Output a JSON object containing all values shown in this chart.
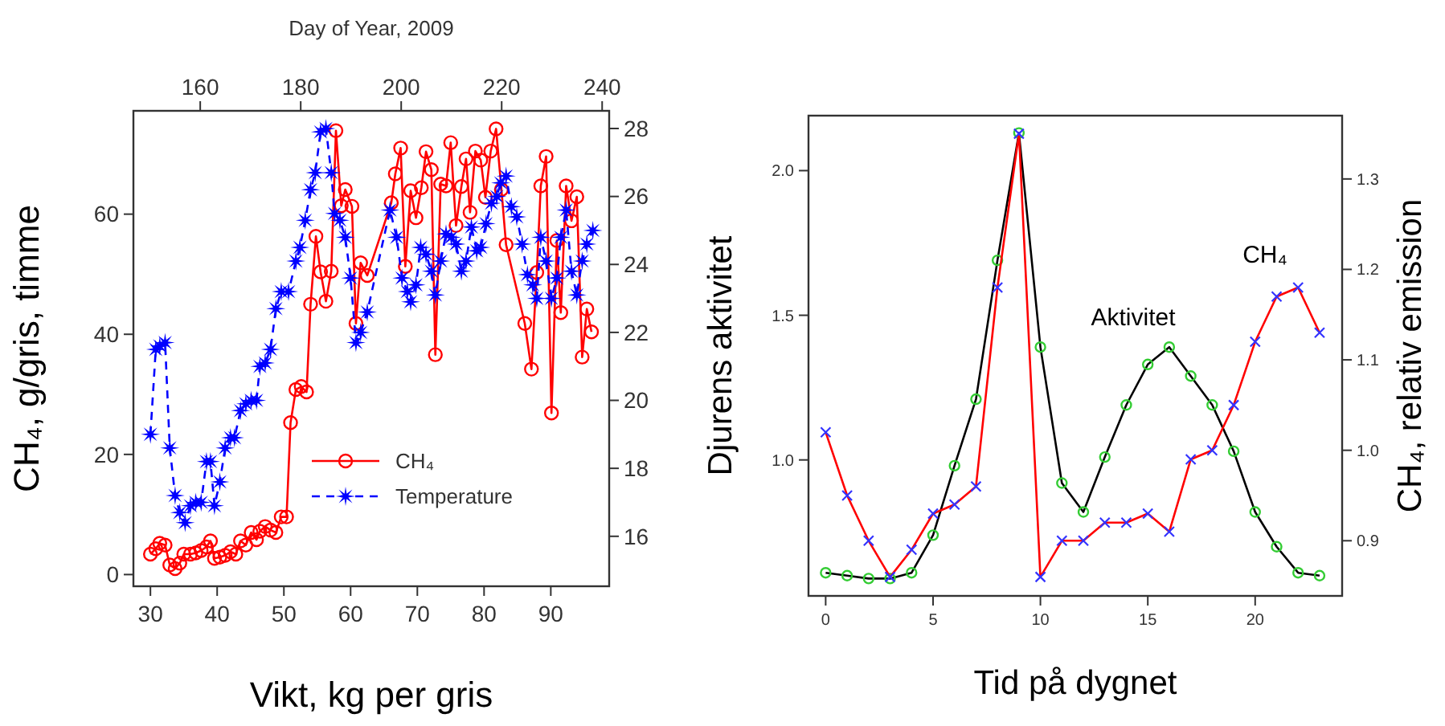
{
  "chart_data": [
    {
      "type": "line",
      "xlabel": "Vikt, kg per gris",
      "ylabel": "CH₄, g/gris, timme",
      "x2label": "Day of Year, 2009",
      "legend": "bottom right",
      "xlim": [
        27.45,
        98.75
      ],
      "xticks": [
        30,
        40,
        50,
        60,
        70,
        80,
        90
      ],
      "ylim": [
        -1.95,
        77.2
      ],
      "yticks": [
        0,
        20,
        40,
        60
      ],
      "x2lim": [
        146.7,
        241.4
      ],
      "x2ticks": [
        160,
        180,
        200,
        220,
        240
      ],
      "y2lim": [
        14.53,
        28.52
      ],
      "y2ticks": [
        16,
        18,
        20,
        22,
        24,
        26,
        28
      ],
      "series": [
        {
          "name": "CH₄",
          "color": "#ff0000",
          "marker": "circle",
          "line_style": "solid",
          "x": [
            30,
            30.8,
            31.4,
            32.2,
            32.9,
            33.7,
            34.4,
            35.0,
            36.0,
            36.8,
            37.6,
            38.4,
            39.0,
            39.6,
            40.4,
            41.2,
            42.0,
            42.8,
            43.5,
            44.3,
            45.1,
            45.9,
            46.4,
            47.2,
            48.0,
            48.8,
            49.6,
            50.4,
            51.0,
            51.8,
            52.6,
            53.4,
            54.0,
            54.8,
            55.5,
            56.3,
            57.1,
            57.8,
            58.6,
            59.2,
            60.2,
            60.8,
            61.5,
            62.5,
            66.1,
            66.7,
            67.5,
            68.2,
            69.0,
            69.8,
            70.6,
            71.3,
            72.1,
            72.7,
            73.5,
            74.3,
            75.0,
            75.8,
            76.6,
            77.3,
            77.9,
            78.7,
            79.5,
            80.2,
            81.0,
            81.8,
            82.6,
            83.3,
            86.1,
            87.1,
            87.9,
            88.5,
            89.3,
            90.1,
            90.9,
            91.5,
            92.3,
            93.1,
            93.9,
            94.7,
            95.4,
            96.1
          ],
          "values": [
            3.4,
            4.3,
            5.2,
            4.9,
            1.6,
            1.0,
            1.9,
            3.4,
            3.4,
            3.6,
            4.0,
            4.6,
            5.6,
            2.7,
            2.9,
            3.2,
            3.8,
            3.4,
            5.6,
            4.9,
            7.0,
            5.8,
            7.2,
            8.0,
            7.4,
            7.0,
            9.6,
            9.6,
            25.3,
            30.8,
            31.3,
            30.4,
            45.0,
            56.3,
            50.4,
            45.5,
            50.5,
            73.9,
            61.4,
            64.1,
            61.3,
            41.8,
            51.9,
            49.8,
            61.9,
            66.7,
            71.0,
            51.3,
            63.9,
            59.4,
            64.4,
            70.4,
            67.4,
            36.6,
            65.0,
            64.7,
            71.9,
            58.1,
            64.6,
            69.2,
            60.3,
            70.5,
            69.0,
            62.8,
            70.5,
            74.2,
            64.1,
            54.9,
            41.8,
            34.2,
            50.3,
            64.7,
            69.6,
            26.9,
            55.6,
            43.6,
            64.7,
            58.9,
            62.9,
            36.2,
            44.2,
            40.4
          ]
        },
        {
          "name": "Temperature",
          "color": "#0000ff",
          "marker": "star",
          "line_style": "dashed",
          "axis": "y2",
          "x": [
            30,
            30.8,
            31.4,
            32.2,
            32.9,
            33.7,
            34.4,
            35.2,
            36.0,
            36.8,
            37.6,
            38.4,
            39.0,
            39.6,
            40.4,
            41.2,
            42.0,
            42.6,
            43.5,
            44.3,
            45.1,
            45.9,
            46.4,
            47.2,
            48.0,
            48.8,
            49.6,
            50.7,
            51.8,
            52.4,
            53.2,
            54.0,
            54.7,
            55.5,
            56.3,
            57.1,
            57.6,
            58.4,
            59.2,
            60.0,
            60.8,
            61.5,
            62.5,
            65.9,
            66.9,
            67.7,
            68.5,
            69.0,
            69.8,
            70.5,
            71.3,
            72.1,
            72.7,
            73.5,
            74.3,
            75.1,
            75.8,
            76.6,
            77.3,
            78.1,
            78.9,
            79.5,
            80.3,
            81.1,
            81.9,
            82.5,
            83.3,
            84.1,
            84.9,
            85.7,
            86.5,
            87.3,
            87.9,
            88.5,
            89.3,
            90.1,
            90.9,
            91.5,
            92.3,
            93.1,
            93.9,
            94.7,
            95.4,
            96.3
          ],
          "values": [
            19.0,
            21.5,
            21.6,
            21.7,
            18.6,
            17.2,
            16.7,
            16.4,
            16.9,
            17.0,
            17.0,
            18.2,
            18.2,
            16.9,
            17.6,
            18.6,
            18.9,
            18.9,
            19.7,
            19.9,
            20.0,
            20.0,
            21.0,
            21.1,
            21.5,
            22.7,
            23.2,
            23.2,
            24.1,
            24.5,
            25.3,
            26.2,
            26.7,
            27.9,
            28.0,
            26.7,
            25.5,
            25.3,
            24.8,
            23.6,
            21.7,
            22.0,
            22.6,
            25.6,
            24.8,
            23.6,
            23.2,
            22.9,
            23.4,
            24.5,
            24.3,
            23.8,
            23.1,
            24.1,
            24.9,
            24.8,
            24.6,
            23.8,
            24.1,
            25.1,
            24.4,
            24.5,
            25.2,
            25.8,
            26.0,
            26.4,
            26.6,
            25.7,
            25.4,
            24.6,
            23.7,
            23.4,
            23.0,
            24.8,
            24.1,
            23.0,
            23.6,
            24.8,
            25.6,
            23.8,
            23.1,
            24.1,
            24.6,
            25.0
          ]
        }
      ]
    },
    {
      "type": "line",
      "xlabel": "Tid på dygnet",
      "ylabel": "Djurens aktivitet",
      "y2label": "CH₄, relativ emission",
      "x": [
        0,
        1,
        2,
        3,
        4,
        5,
        6,
        7,
        8,
        9,
        10,
        11,
        12,
        13,
        14,
        15,
        16,
        17,
        18,
        19,
        20,
        21,
        22,
        23
      ],
      "xlim": [
        -0.8,
        24.05
      ],
      "xticks": [
        0,
        5,
        10,
        15,
        20
      ],
      "ylim": [
        0.53,
        2.19
      ],
      "yticks": [
        {
          "value": 1,
          "label": "1.0"
        },
        {
          "value": 1.5,
          "label": "1.5"
        },
        {
          "value": 2,
          "label": "2.0"
        }
      ],
      "y2lim": [
        0.839,
        1.37
      ],
      "y2ticks": [
        {
          "value": 0.9,
          "label": "0.9"
        },
        {
          "value": 1,
          "label": "1.0"
        },
        {
          "value": 1.1,
          "label": "1.1"
        },
        {
          "value": 1.2,
          "label": "1.2"
        },
        {
          "value": 1.3,
          "label": "1.3"
        }
      ],
      "annotations": [
        "Aktivitet",
        "CH₄"
      ],
      "series": [
        {
          "color": "#000000",
          "marker": "circle",
          "line_style": "solid",
          "colors": [
            "#33cc33",
            "#33cc33",
            "#33cc33",
            "#33cc33",
            "#33cc33",
            "#33cc33",
            "#33cc33",
            "#33cc33",
            "#33cc33",
            "#33cc33",
            "#33cc33",
            "#33cc33",
            "#33cc33",
            "#33cc33",
            "#33cc33",
            "#33cc33",
            "#33cc33",
            "#33cc33",
            "#33cc33",
            "#33cc33",
            "#33cc33",
            "#33cc33",
            "#33cc33",
            "#33cc33"
          ],
          "values": [
            0.61,
            0.6,
            0.59,
            0.59,
            0.61,
            0.74,
            0.98,
            1.21,
            1.69,
            2.13,
            1.39,
            0.92,
            0.82,
            1.01,
            1.19,
            1.33,
            1.39,
            1.29,
            1.19,
            1.03,
            0.82,
            0.7,
            0.61,
            0.6
          ]
        },
        {
          "color": "#ff0000",
          "marker": "cross",
          "line_style": "solid",
          "axis": "y2",
          "colors": [
            "#3333ff",
            "#3333ff",
            "#3333ff",
            "#3333ff",
            "#3333ff",
            "#3333ff",
            "#3333ff",
            "#3333ff",
            "#3333ff",
            "#3333ff",
            "#3333ff",
            "#3333ff",
            "#3333ff",
            "#3333ff",
            "#3333ff",
            "#3333ff",
            "#3333ff",
            "#3333ff",
            "#3333ff",
            "#3333ff",
            "#3333ff",
            "#3333ff",
            "#3333ff",
            "#3333ff"
          ],
          "values": [
            1.02,
            0.95,
            0.9,
            0.86,
            0.89,
            0.93,
            0.94,
            0.96,
            1.18,
            1.35,
            0.86,
            0.9,
            0.9,
            0.92,
            0.92,
            0.93,
            0.91,
            0.99,
            1.0,
            1.05,
            1.12,
            1.17,
            1.18,
            1.13
          ]
        }
      ]
    }
  ]
}
